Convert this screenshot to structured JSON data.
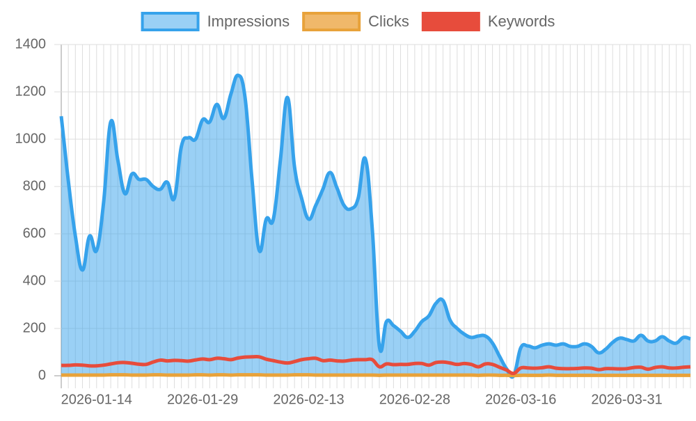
{
  "chart_data": {
    "type": "line",
    "categories": [
      null,
      null,
      null,
      null,
      null,
      "2026-01-14",
      null,
      null,
      null,
      null,
      null,
      null,
      null,
      null,
      null,
      null,
      null,
      null,
      null,
      null,
      "2026-01-29",
      null,
      null,
      null,
      null,
      null,
      null,
      null,
      null,
      null,
      null,
      null,
      null,
      null,
      null,
      "2026-02-13",
      null,
      null,
      null,
      null,
      null,
      null,
      null,
      null,
      null,
      null,
      null,
      null,
      null,
      null,
      "2026-02-28",
      null,
      null,
      null,
      null,
      null,
      null,
      null,
      null,
      null,
      null,
      null,
      null,
      null,
      null,
      "2026-03-16",
      null,
      null,
      null,
      null,
      null,
      null,
      null,
      null,
      null,
      null,
      null,
      null,
      null,
      null,
      "2026-03-31",
      null,
      null,
      null,
      null,
      null,
      null,
      null,
      null,
      null
    ],
    "series": [
      {
        "name": "Impressions",
        "color": "#36a2eb",
        "fill": "rgba(54,162,235,0.5)",
        "values": [
          1097,
          824,
          590,
          447,
          590,
          530,
          735,
          1073,
          912,
          770,
          853,
          830,
          830,
          800,
          788,
          818,
          750,
          970,
          1006,
          1000,
          1082,
          1073,
          1147,
          1088,
          1191,
          1270,
          1176,
          823,
          530,
          662,
          662,
          912,
          1176,
          882,
          750,
          662,
          720,
          788,
          859,
          794,
          720,
          706,
          750,
          918,
          618,
          124,
          229,
          212,
          188,
          162,
          188,
          229,
          253,
          306,
          318,
          235,
          200,
          176,
          162,
          168,
          168,
          138,
          82,
          29,
          0,
          118,
          126,
          118,
          129,
          135,
          129,
          135,
          124,
          124,
          135,
          124,
          97,
          112,
          141,
          159,
          153,
          147,
          171,
          147,
          147,
          165,
          147,
          138,
          162,
          156
        ]
      },
      {
        "name": "Clicks",
        "color": "#e8a23a",
        "fill": "rgba(240,184,106,1)",
        "values": [
          3,
          3,
          3,
          3,
          3,
          3,
          3,
          4,
          4,
          4,
          3,
          3,
          3,
          4,
          4,
          3,
          3,
          3,
          3,
          4,
          4,
          3,
          4,
          4,
          3,
          4,
          4,
          4,
          4,
          3,
          3,
          3,
          3,
          4,
          4,
          4,
          3,
          3,
          3,
          3,
          3,
          3,
          3,
          3,
          3,
          2,
          3,
          3,
          3,
          3,
          3,
          3,
          3,
          3,
          3,
          3,
          3,
          3,
          3,
          2,
          3,
          3,
          2,
          2,
          1,
          2,
          2,
          2,
          2,
          3,
          2,
          2,
          2,
          2,
          2,
          2,
          2,
          2,
          2,
          2,
          2,
          2,
          2,
          2,
          2,
          2,
          2,
          2,
          2,
          2
        ]
      },
      {
        "name": "Keywords",
        "color": "#e74c3c",
        "fill": "#e74c3c",
        "values": [
          44,
          44,
          46,
          45,
          42,
          42,
          45,
          50,
          55,
          56,
          53,
          49,
          48,
          58,
          66,
          63,
          65,
          64,
          62,
          67,
          71,
          68,
          74,
          72,
          68,
          75,
          79,
          80,
          80,
          70,
          64,
          58,
          54,
          60,
          68,
          72,
          74,
          64,
          66,
          63,
          62,
          66,
          68,
          68,
          68,
          38,
          50,
          47,
          48,
          48,
          52,
          52,
          45,
          56,
          58,
          54,
          48,
          52,
          48,
          38,
          50,
          48,
          36,
          24,
          10,
          33,
          33,
          32,
          34,
          38,
          32,
          30,
          30,
          31,
          33,
          32,
          26,
          30,
          30,
          29,
          30,
          35,
          36,
          28,
          35,
          38,
          33,
          33,
          36,
          38
        ]
      }
    ],
    "ylim": [
      0,
      1400
    ],
    "yticks": [
      0,
      200,
      400,
      600,
      800,
      1000,
      1200,
      1400
    ],
    "grid": true,
    "legend": "top"
  }
}
